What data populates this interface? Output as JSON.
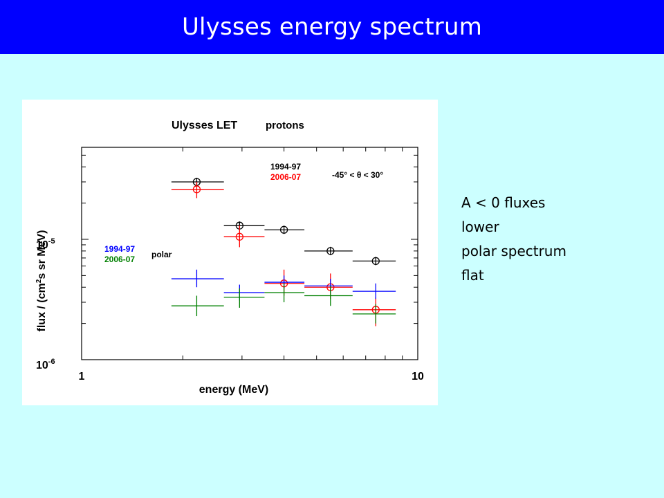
{
  "slide": {
    "title": "Ulysses energy spectrum",
    "notes": [
      "A < 0 fluxes",
      "lower",
      "polar spectrum",
      "flat"
    ]
  },
  "chart_data": {
    "type": "scatter",
    "title": "Ulysses LET",
    "title_suffix": "protons",
    "xlabel": "energy  (MeV)",
    "ylabel_prefix": "flux  / (cm",
    "ylabel_sup": "2",
    "ylabel_suffix": "s sr MeV)",
    "x_scale": "log",
    "y_scale": "log",
    "xlim": [
      1,
      10
    ],
    "ylim": [
      1e-06,
      0.0001
    ],
    "x_tick_labels": [
      {
        "value": 1,
        "text": "1"
      },
      {
        "value": 10,
        "text": "10"
      }
    ],
    "y_tick_labels": [
      {
        "value": 1e-06,
        "base": "10",
        "exp": "-6"
      },
      {
        "value": 1e-05,
        "base": "10",
        "exp": "-5"
      }
    ],
    "legends": {
      "low_latitude": {
        "entries": [
          {
            "label": "1994-97",
            "color": "#000000"
          },
          {
            "label": "2006-07",
            "color": "#FF0000"
          }
        ],
        "range_label": "-45° < θ < 30°"
      },
      "polar": {
        "entries": [
          {
            "label": "1994-97",
            "color": "#0000FF"
          },
          {
            "label": "2006-07",
            "color": "#008000"
          }
        ],
        "range_label": "polar"
      }
    },
    "series": [
      {
        "color": "#000000",
        "marker": "circle-cross",
        "points": [
          {
            "x": 2.2,
            "y": 3e-05,
            "xmin": 1.85,
            "xmax": 2.65,
            "ymin": 3e-05,
            "ymax": 3e-05
          },
          {
            "x": 2.95,
            "y": 1.3e-05,
            "xmin": 2.65,
            "xmax": 3.5,
            "ymin": 1.3e-05,
            "ymax": 1.3e-05
          },
          {
            "x": 4.0,
            "y": 1.2e-05,
            "xmin": 3.5,
            "xmax": 4.6,
            "ymin": 1.2e-05,
            "ymax": 1.2e-05
          },
          {
            "x": 5.5,
            "y": 8e-06,
            "xmin": 4.6,
            "xmax": 6.4,
            "ymin": 8e-06,
            "ymax": 8e-06
          },
          {
            "x": 7.5,
            "y": 6.6e-06,
            "xmin": 6.4,
            "xmax": 8.6,
            "ymin": 6.6e-06,
            "ymax": 6.6e-06
          }
        ]
      },
      {
        "color": "#FF0000",
        "marker": "circle",
        "points": [
          {
            "x": 2.2,
            "y": 2.6e-05,
            "xmin": 1.85,
            "xmax": 2.65,
            "ymin": 2.2e-05,
            "ymax": 3e-05
          },
          {
            "x": 2.95,
            "y": 1.05e-05,
            "xmin": 2.65,
            "xmax": 3.5,
            "ymin": 8.6e-06,
            "ymax": 1.3e-05
          },
          {
            "x": 4.0,
            "y": 4.3e-06,
            "xmin": 3.5,
            "xmax": 4.6,
            "ymin": 3.4e-06,
            "ymax": 5.6e-06
          },
          {
            "x": 5.5,
            "y": 4e-06,
            "xmin": 4.6,
            "xmax": 6.4,
            "ymin": 3.2e-06,
            "ymax": 5.2e-06
          },
          {
            "x": 7.5,
            "y": 2.6e-06,
            "xmin": 6.4,
            "xmax": 8.6,
            "ymin": 1.9e-06,
            "ymax": 3.3e-06
          }
        ]
      },
      {
        "color": "#0000FF",
        "marker": "none",
        "points": [
          {
            "x": 2.2,
            "y": 4.7e-06,
            "xmin": 1.85,
            "xmax": 2.65,
            "ymin": 4e-06,
            "ymax": 5.6e-06
          },
          {
            "x": 2.95,
            "y": 3.6e-06,
            "xmin": 2.65,
            "xmax": 3.5,
            "ymin": 3.1e-06,
            "ymax": 4.2e-06
          },
          {
            "x": 4.0,
            "y": 4.4e-06,
            "xmin": 3.5,
            "xmax": 4.6,
            "ymin": 3.9e-06,
            "ymax": 5e-06
          },
          {
            "x": 5.5,
            "y": 4.1e-06,
            "xmin": 4.6,
            "xmax": 6.4,
            "ymin": 3.6e-06,
            "ymax": 4.7e-06
          },
          {
            "x": 7.5,
            "y": 3.7e-06,
            "xmin": 6.4,
            "xmax": 8.6,
            "ymin": 3.2e-06,
            "ymax": 4.3e-06
          }
        ]
      },
      {
        "color": "#008000",
        "marker": "none",
        "points": [
          {
            "x": 2.2,
            "y": 2.8e-06,
            "xmin": 1.85,
            "xmax": 2.65,
            "ymin": 2.3e-06,
            "ymax": 3.4e-06
          },
          {
            "x": 2.95,
            "y": 3.3e-06,
            "xmin": 2.65,
            "xmax": 3.5,
            "ymin": 2.7e-06,
            "ymax": 3.9e-06
          },
          {
            "x": 4.0,
            "y": 3.6e-06,
            "xmin": 3.5,
            "xmax": 4.6,
            "ymin": 3e-06,
            "ymax": 4.3e-06
          },
          {
            "x": 5.5,
            "y": 3.4e-06,
            "xmin": 4.6,
            "xmax": 6.4,
            "ymin": 2.8e-06,
            "ymax": 4.1e-06
          },
          {
            "x": 7.5,
            "y": 2.4e-06,
            "xmin": 6.4,
            "xmax": 8.6,
            "ymin": 2e-06,
            "ymax": 2.9e-06
          }
        ]
      }
    ]
  }
}
